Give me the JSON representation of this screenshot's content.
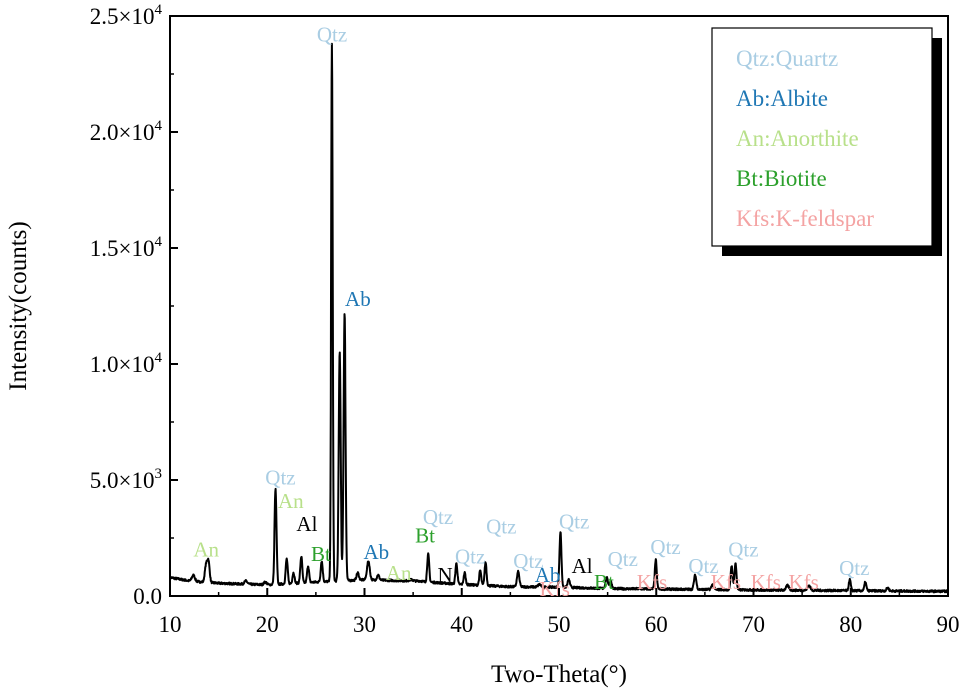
{
  "colors": {
    "qtz": "#a9cde3",
    "ab": "#1f77b4",
    "an": "#b8e08a",
    "bt": "#2ca02c",
    "kfs": "#f4a3a3",
    "other": "#000000"
  },
  "chart_data": {
    "type": "line",
    "xlabel": "Two-Theta(°)",
    "ylabel": "Intensity(counts)",
    "xlim": [
      10,
      90
    ],
    "ylim": [
      0,
      25000
    ],
    "xticks": [
      10,
      20,
      30,
      40,
      50,
      60,
      70,
      80,
      90
    ],
    "yticks": [
      {
        "value": 0,
        "label": "0.0"
      },
      {
        "value": 5000,
        "mant": "5.0",
        "exp": "3"
      },
      {
        "value": 10000,
        "mant": "1.0",
        "exp": "4"
      },
      {
        "value": 15000,
        "mant": "1.5",
        "exp": "4"
      },
      {
        "value": 20000,
        "mant": "2.0",
        "exp": "4"
      },
      {
        "value": 25000,
        "mant": "2.5",
        "exp": "4"
      }
    ],
    "grid": false,
    "legend_position": "top-right",
    "legend": [
      {
        "text": "Qtz:Quartz",
        "color": "qtz"
      },
      {
        "text": "Ab:Albite",
        "color": "ab"
      },
      {
        "text": "An:Anorthite",
        "color": "an"
      },
      {
        "text": "Bt:Biotite",
        "color": "bt"
      },
      {
        "text": "Kfs:K-feldspar",
        "color": "kfs"
      }
    ],
    "baseline": [
      [
        10,
        800
      ],
      [
        12,
        650
      ],
      [
        15,
        550
      ],
      [
        20,
        480
      ],
      [
        25,
        600
      ],
      [
        30,
        700
      ],
      [
        35,
        650
      ],
      [
        40,
        500
      ],
      [
        45,
        400
      ],
      [
        50,
        380
      ],
      [
        55,
        320
      ],
      [
        60,
        300
      ],
      [
        70,
        260
      ],
      [
        80,
        230
      ],
      [
        90,
        200
      ]
    ],
    "peaks": [
      {
        "x": 12.4,
        "y": 900,
        "w": 0.15
      },
      {
        "x": 13.7,
        "y": 1300,
        "w": 0.12
      },
      {
        "x": 13.95,
        "y": 1500,
        "w": 0.12
      },
      {
        "x": 17.8,
        "y": 650,
        "w": 0.15
      },
      {
        "x": 19.8,
        "y": 600,
        "w": 0.15
      },
      {
        "x": 20.85,
        "y": 4600,
        "w": 0.1
      },
      {
        "x": 22.0,
        "y": 1600,
        "w": 0.1
      },
      {
        "x": 22.7,
        "y": 1000,
        "w": 0.1
      },
      {
        "x": 23.5,
        "y": 1700,
        "w": 0.1
      },
      {
        "x": 24.2,
        "y": 1300,
        "w": 0.1
      },
      {
        "x": 25.6,
        "y": 1500,
        "w": 0.1
      },
      {
        "x": 26.65,
        "y": 23800,
        "w": 0.08
      },
      {
        "x": 27.45,
        "y": 10500,
        "w": 0.1
      },
      {
        "x": 27.95,
        "y": 12200,
        "w": 0.1
      },
      {
        "x": 29.3,
        "y": 1000,
        "w": 0.12
      },
      {
        "x": 30.4,
        "y": 1500,
        "w": 0.14
      },
      {
        "x": 31.4,
        "y": 900,
        "w": 0.12
      },
      {
        "x": 34.8,
        "y": 700,
        "w": 0.2
      },
      {
        "x": 35.7,
        "y": 650,
        "w": 0.2
      },
      {
        "x": 36.55,
        "y": 1800,
        "w": 0.1
      },
      {
        "x": 39.45,
        "y": 1400,
        "w": 0.1
      },
      {
        "x": 40.3,
        "y": 1000,
        "w": 0.1
      },
      {
        "x": 41.9,
        "y": 1100,
        "w": 0.1
      },
      {
        "x": 42.45,
        "y": 1450,
        "w": 0.1
      },
      {
        "x": 45.8,
        "y": 1050,
        "w": 0.12
      },
      {
        "x": 48.0,
        "y": 500,
        "w": 0.15
      },
      {
        "x": 50.15,
        "y": 2800,
        "w": 0.1
      },
      {
        "x": 51.0,
        "y": 700,
        "w": 0.12
      },
      {
        "x": 54.9,
        "y": 800,
        "w": 0.12
      },
      {
        "x": 55.3,
        "y": 650,
        "w": 0.12
      },
      {
        "x": 59.95,
        "y": 1550,
        "w": 0.1
      },
      {
        "x": 64.0,
        "y": 900,
        "w": 0.12
      },
      {
        "x": 65.8,
        "y": 500,
        "w": 0.12
      },
      {
        "x": 67.75,
        "y": 1300,
        "w": 0.1
      },
      {
        "x": 68.15,
        "y": 1400,
        "w": 0.1
      },
      {
        "x": 73.5,
        "y": 450,
        "w": 0.15
      },
      {
        "x": 75.7,
        "y": 450,
        "w": 0.15
      },
      {
        "x": 79.9,
        "y": 700,
        "w": 0.1
      },
      {
        "x": 81.5,
        "y": 600,
        "w": 0.1
      },
      {
        "x": 83.8,
        "y": 350,
        "w": 0.12
      }
    ],
    "annotations": [
      {
        "text": "Qtz",
        "x": 25.1,
        "y": 23900,
        "color": "qtz"
      },
      {
        "text": "Ab",
        "x": 28.0,
        "y": 12500,
        "color": "ab"
      },
      {
        "text": "Qtz",
        "x": 19.8,
        "y": 4800,
        "color": "qtz"
      },
      {
        "text": "An",
        "x": 21.1,
        "y": 3800,
        "color": "an"
      },
      {
        "text": "Al",
        "x": 23.0,
        "y": 2800,
        "color": "other"
      },
      {
        "text": "Bt",
        "x": 24.5,
        "y": 1500,
        "color": "bt"
      },
      {
        "text": "An",
        "x": 12.4,
        "y": 1700,
        "color": "an"
      },
      {
        "text": "Ab",
        "x": 29.9,
        "y": 1600,
        "color": "ab"
      },
      {
        "text": "Bt",
        "x": 35.2,
        "y": 2300,
        "color": "bt"
      },
      {
        "text": "An",
        "x": 32.2,
        "y": 700,
        "color": "an"
      },
      {
        "text": "N",
        "x": 37.5,
        "y": 600,
        "color": "other"
      },
      {
        "text": "Qtz",
        "x": 36.0,
        "y": 3100,
        "color": "qtz"
      },
      {
        "text": "Qtz",
        "x": 39.3,
        "y": 1400,
        "color": "qtz"
      },
      {
        "text": "Qtz",
        "x": 42.5,
        "y": 2700,
        "color": "qtz"
      },
      {
        "text": "Qtz",
        "x": 45.3,
        "y": 1200,
        "color": "qtz"
      },
      {
        "text": "Ab",
        "x": 47.5,
        "y": 600,
        "color": "ab"
      },
      {
        "text": "Kfs",
        "x": 48.0,
        "y": 0,
        "color": "kfs"
      },
      {
        "text": "Qtz",
        "x": 50.0,
        "y": 2900,
        "color": "qtz"
      },
      {
        "text": "Al",
        "x": 51.3,
        "y": 1000,
        "color": "other"
      },
      {
        "text": "Qtz",
        "x": 55.0,
        "y": 1300,
        "color": "qtz",
        "small": true
      },
      {
        "text": "Bt",
        "x": 53.6,
        "y": 300,
        "color": "bt"
      },
      {
        "text": "Kfs",
        "x": 58.0,
        "y": 300,
        "color": "kfs"
      },
      {
        "text": "Qtz",
        "x": 59.4,
        "y": 1800,
        "color": "qtz"
      },
      {
        "text": "Qtz",
        "x": 63.3,
        "y": 1000,
        "color": "qtz"
      },
      {
        "text": "Kfs",
        "x": 65.6,
        "y": 300,
        "color": "kfs"
      },
      {
        "text": "Qtz",
        "x": 67.4,
        "y": 1700,
        "color": "qtz"
      },
      {
        "text": "Kfs",
        "x": 69.7,
        "y": 300,
        "color": "kfs"
      },
      {
        "text": "Kfs",
        "x": 73.6,
        "y": 300,
        "color": "kfs"
      },
      {
        "text": "Qtz",
        "x": 78.8,
        "y": 900,
        "color": "qtz"
      }
    ]
  }
}
